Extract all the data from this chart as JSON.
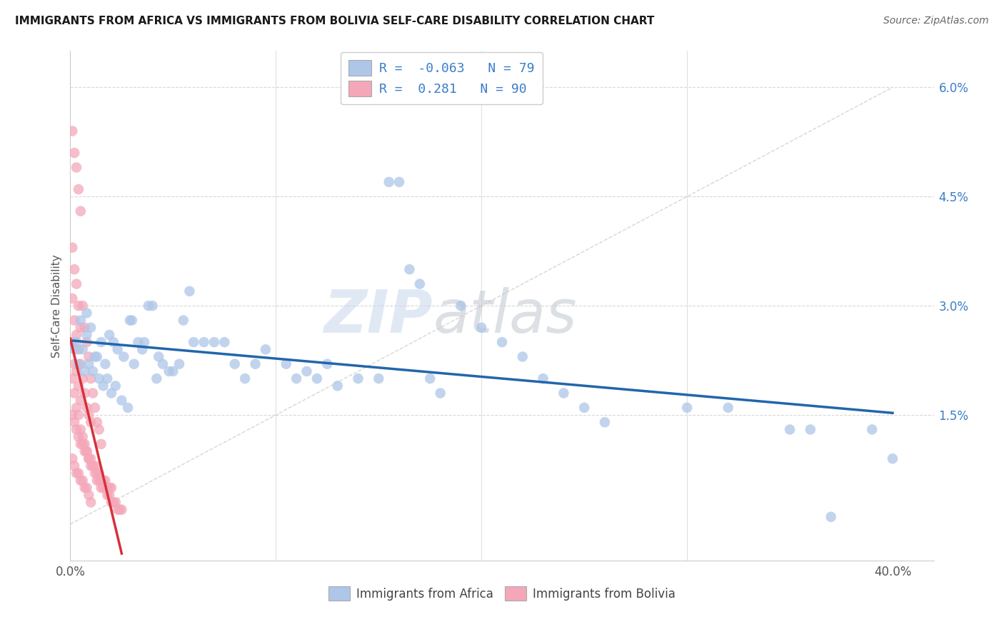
{
  "title": "IMMIGRANTS FROM AFRICA VS IMMIGRANTS FROM BOLIVIA SELF-CARE DISABILITY CORRELATION CHART",
  "source": "Source: ZipAtlas.com",
  "ylabel": "Self-Care Disability",
  "xlim": [
    0.0,
    0.42
  ],
  "ylim": [
    -0.005,
    0.065
  ],
  "africa_R": -0.063,
  "africa_N": 79,
  "bolivia_R": 0.281,
  "bolivia_N": 90,
  "africa_color": "#aec6e8",
  "bolivia_color": "#f4a7b9",
  "africa_line_color": "#2166ac",
  "bolivia_line_color": "#d6313a",
  "diagonal_color": "#cccccc",
  "watermark_zip": "ZIP",
  "watermark_atlas": "atlas",
  "legend_africa_label": "Immigrants from Africa",
  "legend_bolivia_label": "Immigrants from Bolivia",
  "legend_text_color": "#3a7dc9",
  "ytick_color": "#3a7dc9",
  "xtick_color": "#555555",
  "grid_color": "#d8d8d8",
  "africa_x": [
    0.005,
    0.008,
    0.003,
    0.01,
    0.006,
    0.012,
    0.009,
    0.004,
    0.007,
    0.002,
    0.015,
    0.013,
    0.018,
    0.011,
    0.016,
    0.02,
    0.014,
    0.022,
    0.017,
    0.008,
    0.025,
    0.019,
    0.023,
    0.028,
    0.021,
    0.03,
    0.026,
    0.033,
    0.035,
    0.029,
    0.038,
    0.031,
    0.04,
    0.043,
    0.036,
    0.045,
    0.048,
    0.05,
    0.053,
    0.042,
    0.06,
    0.07,
    0.055,
    0.065,
    0.075,
    0.08,
    0.085,
    0.09,
    0.095,
    0.058,
    0.11,
    0.12,
    0.105,
    0.115,
    0.125,
    0.13,
    0.14,
    0.15,
    0.16,
    0.155,
    0.17,
    0.165,
    0.175,
    0.18,
    0.19,
    0.2,
    0.21,
    0.22,
    0.23,
    0.24,
    0.25,
    0.26,
    0.3,
    0.32,
    0.35,
    0.36,
    0.37,
    0.39,
    0.4
  ],
  "africa_y": [
    0.028,
    0.026,
    0.025,
    0.027,
    0.024,
    0.023,
    0.022,
    0.022,
    0.021,
    0.024,
    0.025,
    0.023,
    0.02,
    0.021,
    0.019,
    0.018,
    0.02,
    0.019,
    0.022,
    0.029,
    0.017,
    0.026,
    0.024,
    0.016,
    0.025,
    0.028,
    0.023,
    0.025,
    0.024,
    0.028,
    0.03,
    0.022,
    0.03,
    0.023,
    0.025,
    0.022,
    0.021,
    0.021,
    0.022,
    0.02,
    0.025,
    0.025,
    0.028,
    0.025,
    0.025,
    0.022,
    0.02,
    0.022,
    0.024,
    0.032,
    0.02,
    0.02,
    0.022,
    0.021,
    0.022,
    0.019,
    0.02,
    0.02,
    0.047,
    0.047,
    0.033,
    0.035,
    0.02,
    0.018,
    0.03,
    0.027,
    0.025,
    0.023,
    0.02,
    0.018,
    0.016,
    0.014,
    0.016,
    0.016,
    0.013,
    0.013,
    0.001,
    0.013,
    0.009
  ],
  "bolivia_x": [
    0.001,
    0.002,
    0.003,
    0.004,
    0.005,
    0.001,
    0.002,
    0.003,
    0.004,
    0.005,
    0.001,
    0.002,
    0.003,
    0.004,
    0.005,
    0.006,
    0.007,
    0.008,
    0.009,
    0.01,
    0.006,
    0.007,
    0.008,
    0.009,
    0.01,
    0.011,
    0.012,
    0.013,
    0.014,
    0.015,
    0.001,
    0.002,
    0.003,
    0.004,
    0.005,
    0.001,
    0.002,
    0.003,
    0.004,
    0.005,
    0.006,
    0.007,
    0.008,
    0.009,
    0.01,
    0.011,
    0.012,
    0.013,
    0.014,
    0.015,
    0.016,
    0.017,
    0.018,
    0.019,
    0.02,
    0.021,
    0.022,
    0.023,
    0.024,
    0.025,
    0.001,
    0.002,
    0.003,
    0.004,
    0.005,
    0.006,
    0.007,
    0.008,
    0.009,
    0.01,
    0.011,
    0.012,
    0.013,
    0.014,
    0.015,
    0.016,
    0.017,
    0.018,
    0.019,
    0.02,
    0.001,
    0.002,
    0.003,
    0.004,
    0.005,
    0.006,
    0.007,
    0.008,
    0.009,
    0.01
  ],
  "bolivia_y": [
    0.054,
    0.051,
    0.049,
    0.046,
    0.043,
    0.038,
    0.035,
    0.033,
    0.03,
    0.027,
    0.031,
    0.028,
    0.026,
    0.024,
    0.022,
    0.02,
    0.018,
    0.016,
    0.015,
    0.014,
    0.03,
    0.027,
    0.025,
    0.023,
    0.02,
    0.018,
    0.016,
    0.014,
    0.013,
    0.011,
    0.025,
    0.022,
    0.021,
    0.019,
    0.017,
    0.02,
    0.018,
    0.016,
    0.015,
    0.013,
    0.012,
    0.011,
    0.01,
    0.009,
    0.008,
    0.008,
    0.007,
    0.006,
    0.006,
    0.005,
    0.005,
    0.005,
    0.004,
    0.004,
    0.003,
    0.003,
    0.003,
    0.002,
    0.002,
    0.002,
    0.015,
    0.014,
    0.013,
    0.012,
    0.011,
    0.011,
    0.01,
    0.01,
    0.009,
    0.009,
    0.008,
    0.008,
    0.007,
    0.007,
    0.006,
    0.006,
    0.006,
    0.005,
    0.005,
    0.005,
    0.009,
    0.008,
    0.007,
    0.007,
    0.006,
    0.006,
    0.005,
    0.005,
    0.004,
    0.003
  ]
}
